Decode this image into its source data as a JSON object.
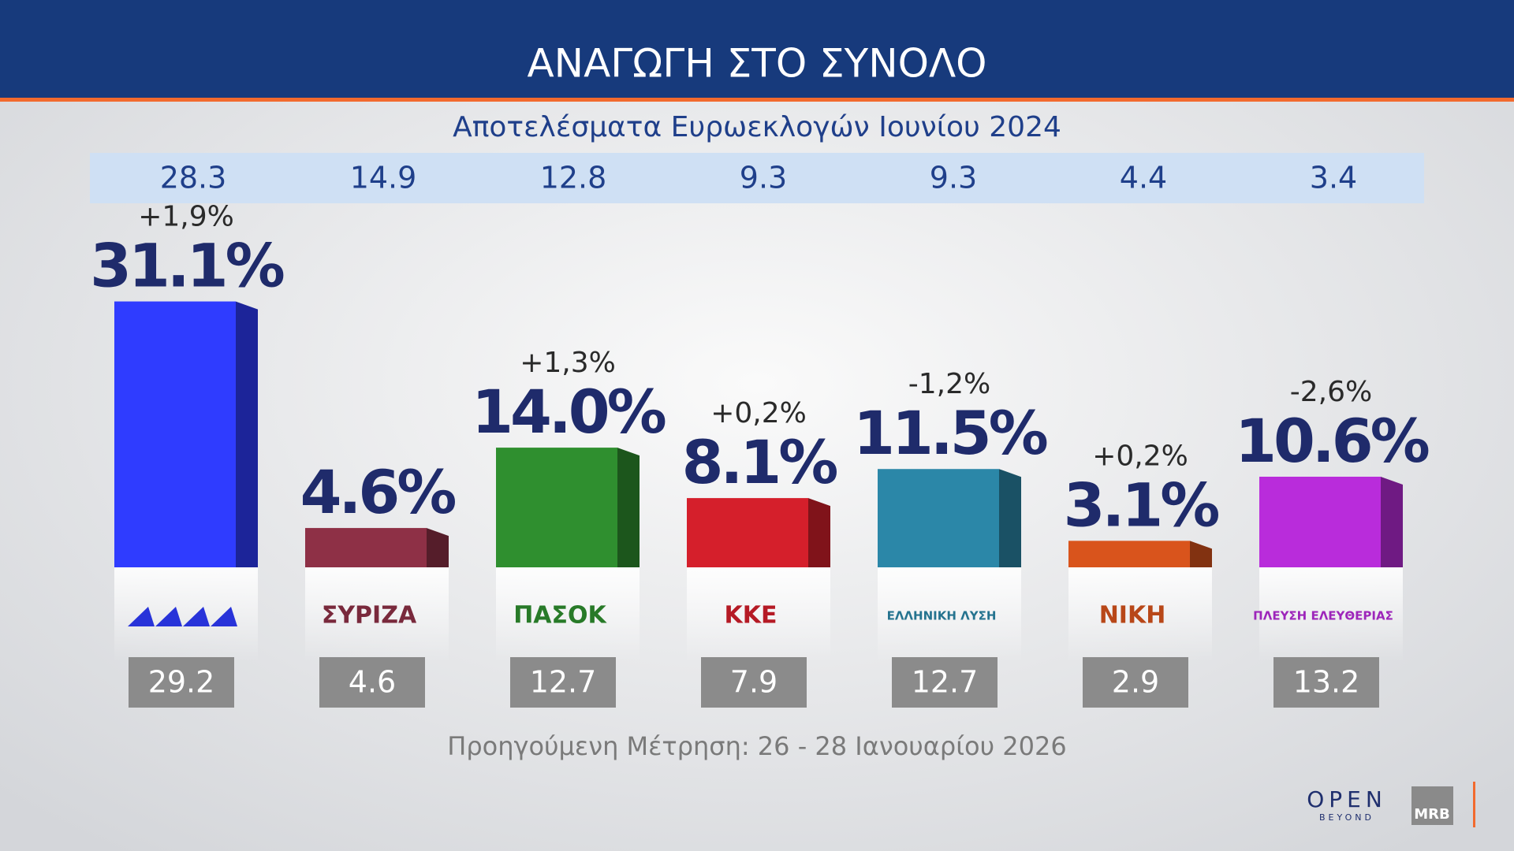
{
  "chart_data": {
    "type": "bar",
    "title": "ΑΝΑΓΩΓΗ ΣΤΟ ΣΥΝΟΛΟ",
    "categories": [
      null,
      "ΣΥΡΙΖΑ",
      "ΠΑΣΟΚ",
      "ΚΚΕ",
      "ΕΛΛΗΝΙΚΗ ΛΥΣΗ",
      "ΝΙΚΗ",
      "ΠΛΕΥΣΗ ΕΛΕΥΘΕΡΙΑΣ"
    ],
    "values": [
      31.1,
      4.6,
      14.0,
      8.1,
      11.5,
      3.1,
      10.6
    ],
    "value_labels": [
      "31.1%",
      "4.6%",
      "14.0%",
      "8.1%",
      "11.5%",
      "3.1%",
      "10.6%"
    ],
    "colors": [
      "#2f3cff",
      "#8e3046",
      "#2f8f2f",
      "#d51f2b",
      "#2b87a8",
      "#d9541c",
      "#b92cdb"
    ],
    "change": {
      "values": [
        1.9,
        null,
        1.3,
        0.2,
        -1.2,
        0.2,
        -2.6
      ],
      "value_labels": [
        "+1,9%",
        null,
        "+1,3%",
        "+0,2%",
        "-1,2%",
        "+0,2%",
        "-2,6%"
      ]
    },
    "euro_elections": {
      "label": "Αποτελέσματα Ευρωεκλογών Ιουνίου 2024",
      "values": [
        28.3,
        14.9,
        12.8,
        9.3,
        9.3,
        4.4,
        3.4
      ]
    },
    "previous": {
      "label": "Προηγούμενη Μέτρηση: 26 - 28 Ιανουαρίου 2026",
      "values": [
        29.2,
        4.6,
        12.7,
        7.9,
        12.7,
        2.9,
        13.2
      ]
    }
  },
  "branding": {
    "channel": "OPEN",
    "tagline": "BEYOND",
    "pollster": "MRB"
  }
}
